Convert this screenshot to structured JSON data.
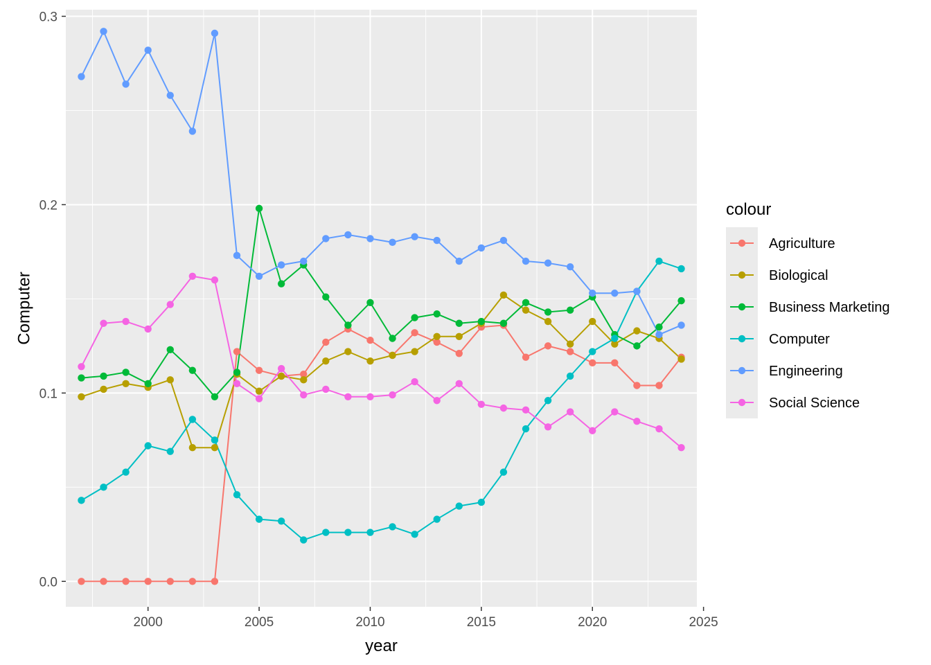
{
  "chart_data": {
    "type": "line",
    "xlabel": "year",
    "ylabel": "Computer",
    "xlim": [
      1996.3,
      2024.7
    ],
    "ylim": [
      -0.0135,
      0.3035
    ],
    "x_ticks": [
      2000,
      2005,
      2010,
      2015,
      2020,
      2025
    ],
    "x_tick_labels": [
      "2000",
      "2005",
      "2010",
      "2015",
      "2020",
      "2025"
    ],
    "y_ticks": [
      0.0,
      0.1,
      0.2,
      0.3
    ],
    "y_tick_labels": [
      "0.0",
      "0.1",
      "0.2",
      "0.3"
    ],
    "grid": true,
    "legend": {
      "title": "colour",
      "position": "right"
    },
    "x": [
      1997,
      1998,
      1999,
      2000,
      2001,
      2002,
      2003,
      2004,
      2005,
      2006,
      2007,
      2008,
      2009,
      2010,
      2011,
      2012,
      2013,
      2014,
      2015,
      2016,
      2017,
      2018,
      2019,
      2020,
      2021,
      2022,
      2023,
      2024
    ],
    "series": [
      {
        "name": "Agriculture",
        "color": "#F8766D",
        "values": [
          0.0,
          0.0,
          0.0,
          0.0,
          0.0,
          0.0,
          0.0,
          0.122,
          0.112,
          0.109,
          0.11,
          0.127,
          0.134,
          0.128,
          0.12,
          0.132,
          0.127,
          0.121,
          0.135,
          0.136,
          0.119,
          0.125,
          0.122,
          0.116,
          0.116,
          0.104,
          0.104,
          0.119
        ]
      },
      {
        "name": "Biological",
        "color": "#B79F00",
        "values": [
          0.098,
          0.102,
          0.105,
          0.103,
          0.107,
          0.071,
          0.071,
          0.11,
          0.101,
          0.109,
          0.107,
          0.117,
          0.122,
          0.117,
          0.12,
          0.122,
          0.13,
          0.13,
          0.137,
          0.152,
          0.144,
          0.138,
          0.126,
          0.138,
          0.126,
          0.133,
          0.129,
          0.118
        ]
      },
      {
        "name": "Business Marketing",
        "color": "#00BA38",
        "values": [
          0.108,
          0.109,
          0.111,
          0.105,
          0.123,
          0.112,
          0.098,
          0.111,
          0.198,
          0.158,
          0.168,
          0.151,
          0.136,
          0.148,
          0.129,
          0.14,
          0.142,
          0.137,
          0.138,
          0.137,
          0.148,
          0.143,
          0.144,
          0.151,
          0.131,
          0.125,
          0.135,
          0.149
        ]
      },
      {
        "name": "Computer",
        "color": "#00BFC4",
        "values": [
          0.043,
          0.05,
          0.058,
          0.072,
          0.069,
          0.086,
          0.075,
          0.046,
          0.033,
          0.032,
          0.022,
          0.026,
          0.026,
          0.026,
          0.029,
          0.025,
          0.033,
          0.04,
          0.042,
          0.058,
          0.081,
          0.096,
          0.109,
          0.122,
          0.129,
          0.154,
          0.17,
          0.166
        ]
      },
      {
        "name": "Engineering",
        "color": "#619CFF",
        "values": [
          0.268,
          0.292,
          0.264,
          0.282,
          0.258,
          0.239,
          0.291,
          0.173,
          0.162,
          0.168,
          0.17,
          0.182,
          0.184,
          0.182,
          0.18,
          0.183,
          0.181,
          0.17,
          0.177,
          0.181,
          0.17,
          0.169,
          0.167,
          0.153,
          0.153,
          0.154,
          0.131,
          0.136
        ]
      },
      {
        "name": "Social Science",
        "color": "#F564E3",
        "values": [
          0.114,
          0.137,
          0.138,
          0.134,
          0.147,
          0.162,
          0.16,
          0.105,
          0.097,
          0.113,
          0.099,
          0.102,
          0.098,
          0.098,
          0.099,
          0.106,
          0.096,
          0.105,
          0.094,
          0.092,
          0.091,
          0.082,
          0.09,
          0.08,
          0.09,
          0.085,
          0.081,
          0.071
        ]
      }
    ]
  }
}
